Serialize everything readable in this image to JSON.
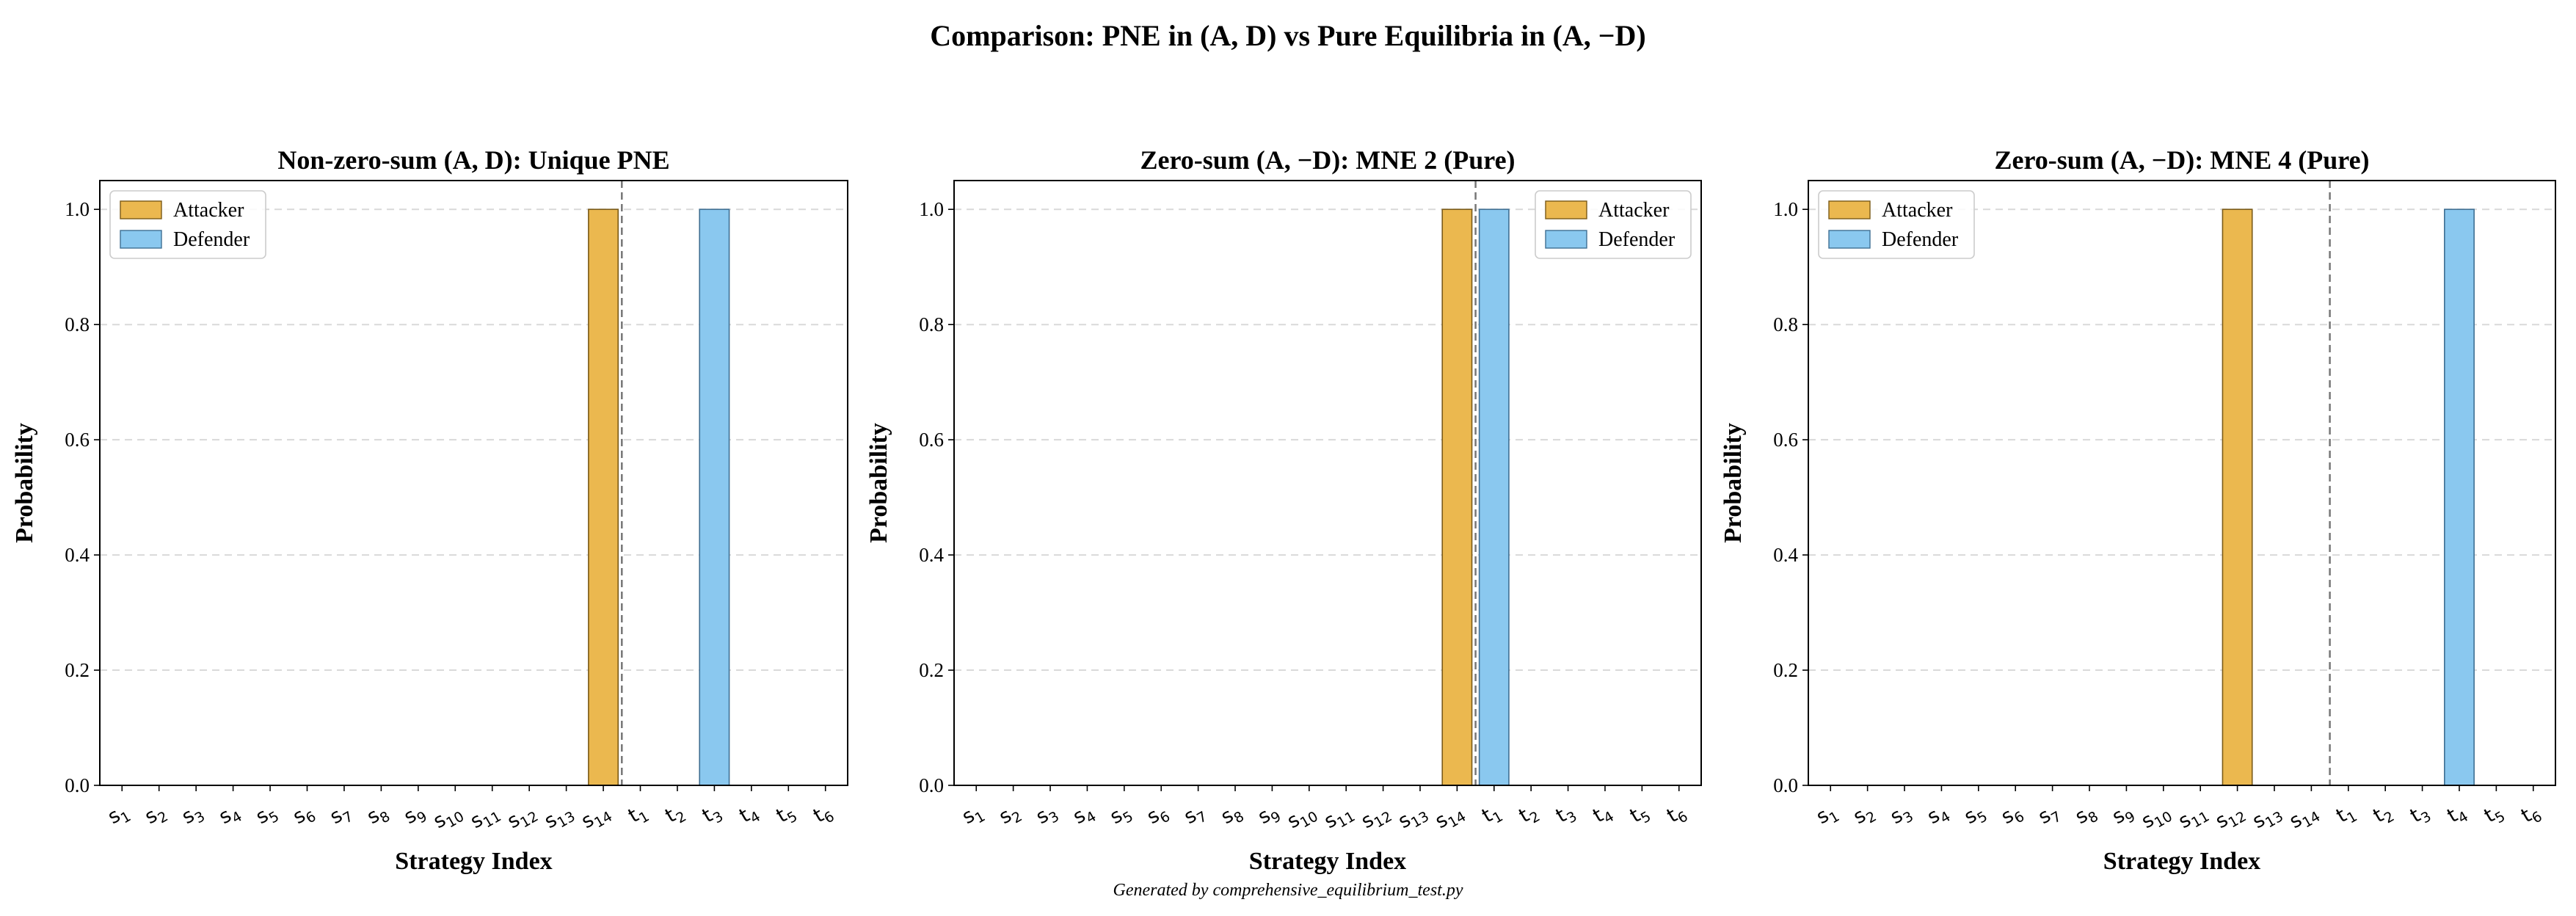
{
  "figure": {
    "suptitle": "Comparison: PNE in (A, D) vs Pure Equilibria in (A, −D)",
    "footer": "Generated by comprehensive_equilibrium_test.py"
  },
  "colors": {
    "attacker": "#EBB84F",
    "defender": "#8AC8EF",
    "grid": "#D9D9D9"
  },
  "chart_data": [
    {
      "type": "bar",
      "title": "Non-zero-sum (A, D): Unique PNE",
      "xlabel": "Strategy Index",
      "ylabel": "Probability",
      "ylim": [
        0,
        1.05
      ],
      "yticks": [
        "0.0",
        "0.2",
        "0.4",
        "0.6",
        "0.8",
        "1.0"
      ],
      "grid": "y-dashed",
      "legend_loc": "upper-left",
      "categories": [
        "s1",
        "s2",
        "s3",
        "s4",
        "s5",
        "s6",
        "s7",
        "s8",
        "s9",
        "s10",
        "s11",
        "s12",
        "s13",
        "s14",
        "t1",
        "t2",
        "t3",
        "t4",
        "t5",
        "t6"
      ],
      "divider_after": 14,
      "series": [
        {
          "name": "Attacker",
          "values": [
            0,
            0,
            0,
            0,
            0,
            0,
            0,
            0,
            0,
            0,
            0,
            0,
            0,
            1.0,
            0,
            0,
            0,
            0,
            0,
            0
          ]
        },
        {
          "name": "Defender",
          "values": [
            0,
            0,
            0,
            0,
            0,
            0,
            0,
            0,
            0,
            0,
            0,
            0,
            0,
            0,
            0,
            0,
            1.0,
            0,
            0,
            0
          ]
        }
      ]
    },
    {
      "type": "bar",
      "title": "Zero-sum (A, −D): MNE 2 (Pure)",
      "xlabel": "Strategy Index",
      "ylabel": "Probability",
      "ylim": [
        0,
        1.05
      ],
      "yticks": [
        "0.0",
        "0.2",
        "0.4",
        "0.6",
        "0.8",
        "1.0"
      ],
      "grid": "y-dashed",
      "legend_loc": "upper-right",
      "categories": [
        "s1",
        "s2",
        "s3",
        "s4",
        "s5",
        "s6",
        "s7",
        "s8",
        "s9",
        "s10",
        "s11",
        "s12",
        "s13",
        "s14",
        "t1",
        "t2",
        "t3",
        "t4",
        "t5",
        "t6"
      ],
      "divider_after": 14,
      "series": [
        {
          "name": "Attacker",
          "values": [
            0,
            0,
            0,
            0,
            0,
            0,
            0,
            0,
            0,
            0,
            0,
            0,
            0,
            1.0,
            0,
            0,
            0,
            0,
            0,
            0
          ]
        },
        {
          "name": "Defender",
          "values": [
            0,
            0,
            0,
            0,
            0,
            0,
            0,
            0,
            0,
            0,
            0,
            0,
            0,
            0,
            1.0,
            0,
            0,
            0,
            0,
            0
          ]
        }
      ]
    },
    {
      "type": "bar",
      "title": "Zero-sum (A, −D): MNE 4 (Pure)",
      "xlabel": "Strategy Index",
      "ylabel": "Probability",
      "ylim": [
        0,
        1.05
      ],
      "yticks": [
        "0.0",
        "0.2",
        "0.4",
        "0.6",
        "0.8",
        "1.0"
      ],
      "grid": "y-dashed",
      "legend_loc": "upper-left",
      "categories": [
        "s1",
        "s2",
        "s3",
        "s4",
        "s5",
        "s6",
        "s7",
        "s8",
        "s9",
        "s10",
        "s11",
        "s12",
        "s13",
        "s14",
        "t1",
        "t2",
        "t3",
        "t4",
        "t5",
        "t6"
      ],
      "divider_after": 14,
      "series": [
        {
          "name": "Attacker",
          "values": [
            0,
            0,
            0,
            0,
            0,
            0,
            0,
            0,
            0,
            0,
            0,
            1.0,
            0,
            0,
            0,
            0,
            0,
            0,
            0,
            0
          ]
        },
        {
          "name": "Defender",
          "values": [
            0,
            0,
            0,
            0,
            0,
            0,
            0,
            0,
            0,
            0,
            0,
            0,
            0,
            0,
            0,
            0,
            0,
            1.0,
            0,
            0
          ]
        }
      ]
    }
  ]
}
